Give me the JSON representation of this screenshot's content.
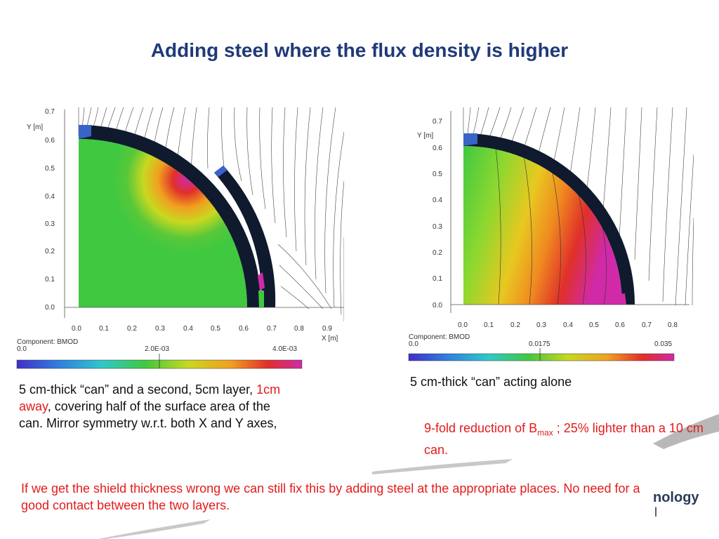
{
  "title": "Adding steel where the flux density is higher",
  "left_plot": {
    "y_axis_label": "Y [m]",
    "x_axis_label": "X [m]",
    "y_ticks": [
      "0.7",
      "0.6",
      "0.5",
      "0.4",
      "0.3",
      "0.2",
      "0.1",
      "0.0"
    ],
    "x_ticks": [
      "0.0",
      "0.1",
      "0.2",
      "0.3",
      "0.4",
      "0.5",
      "0.6",
      "0.7",
      "0.8",
      "0.9"
    ],
    "component_label": "Component: BMOD",
    "scale_min": "0.0",
    "scale_mid": "2.0E-03",
    "scale_max": "4.0E-03"
  },
  "right_plot": {
    "y_axis_label": "Y [m]",
    "y_ticks": [
      "0.7",
      "0.6",
      "0.5",
      "0.4",
      "0.3",
      "0.2",
      "0.1",
      "0.0"
    ],
    "x_ticks": [
      "0.0",
      "0.1",
      "0.2",
      "0.3",
      "0.4",
      "0.5",
      "0.6",
      "0.7",
      "0.8"
    ],
    "component_label": "Component: BMOD",
    "scale_min": "0.0",
    "scale_mid": "0.0175",
    "scale_max": "0.035"
  },
  "left_caption": {
    "part1": "5 cm-thick “can” and a second, 5cm layer, ",
    "highlight": "1cm away",
    "part2": ", covering half of the surface area of the can. Mirror symmetry w.r.t. both X and Y axes,"
  },
  "right_caption": "5 cm-thick “can” acting alone",
  "remark": {
    "part1": "9-fold reduction of B",
    "sub": "max",
    "part2": " ; 25% lighter than a 10 cm can."
  },
  "note": "If we get the shield thickness wrong we can still fix this by adding steel at the appropriate places. No need for a good contact between the two layers.",
  "logo": {
    "line1": "nology",
    "line2": "l"
  },
  "colors": {
    "title": "#1f3a78",
    "highlight": "#e31b1b",
    "shield": "#0f1a2e"
  }
}
